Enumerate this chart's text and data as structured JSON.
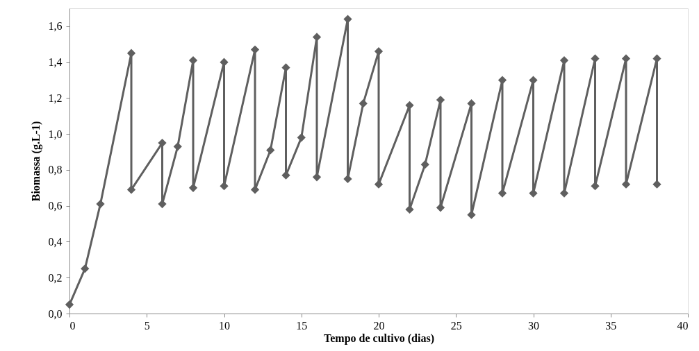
{
  "chart_data": {
    "type": "line",
    "xlabel": "Tempo de cultivo (dias)",
    "ylabel": "Biomassa (g.L-1)",
    "series": [
      {
        "color": "#5f5f5f",
        "x": [
          0,
          1,
          2,
          4,
          4,
          6,
          6,
          7,
          8,
          8,
          10,
          10,
          12,
          12,
          13,
          14,
          14,
          15,
          16,
          16,
          18,
          18,
          19,
          20,
          20,
          22,
          22,
          23,
          24,
          24,
          26,
          26,
          28,
          28,
          30,
          30,
          32,
          32,
          34,
          34,
          36,
          36,
          38,
          38
        ],
        "values": [
          0.05,
          0.25,
          0.61,
          1.45,
          0.69,
          0.95,
          0.61,
          0.93,
          1.41,
          0.7,
          1.4,
          0.71,
          1.47,
          0.69,
          0.91,
          1.37,
          0.77,
          0.98,
          1.54,
          0.76,
          1.64,
          0.75,
          1.17,
          1.46,
          0.72,
          1.16,
          0.58,
          0.83,
          1.19,
          0.59,
          1.17,
          0.55,
          1.3,
          0.67,
          1.3,
          0.67,
          1.41,
          0.67,
          1.42,
          0.71,
          1.42,
          0.72,
          1.42,
          0.72
        ]
      }
    ],
    "xlim": [
      0,
      40
    ],
    "xticks": [
      0,
      5,
      10,
      15,
      20,
      25,
      30,
      35,
      40
    ],
    "ylim": [
      0,
      1.7
    ],
    "yticks": [
      {
        "value": 0,
        "label": "0,0"
      },
      {
        "value": 0.2,
        "label": "0,2"
      },
      {
        "value": 0.4,
        "label": "0,4"
      },
      {
        "value": 0.6,
        "label": "0,6"
      },
      {
        "value": 0.8,
        "label": "0,8"
      },
      {
        "value": 1.0,
        "label": "1,0"
      },
      {
        "value": 1.2,
        "label": "1,2"
      },
      {
        "value": 1.4,
        "label": "1,4"
      },
      {
        "value": 1.6,
        "label": "1,6"
      }
    ],
    "marker": "diamond",
    "line_style": "solid",
    "grid": false
  }
}
